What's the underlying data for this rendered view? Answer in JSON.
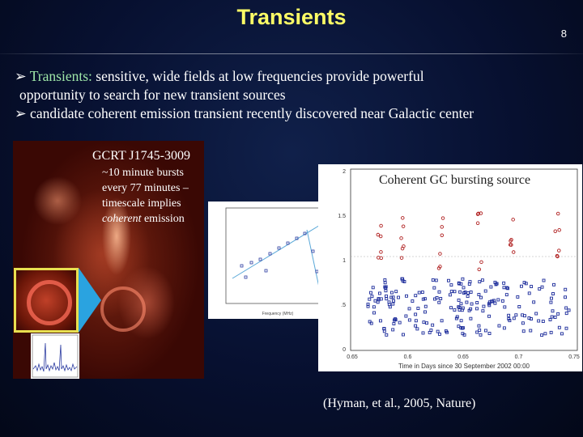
{
  "slide": {
    "title": "Transients",
    "page_number": "8"
  },
  "bullets": {
    "b1_term": "Transients:",
    "b1_rest": " sensitive, wide fields at low frequencies provide powerful",
    "b1_line2": "opportunity to search for new transient sources",
    "b2": "candidate coherent emission transient recently discovered near Galactic center",
    "bullet_glyph": "➢"
  },
  "radio_image": {
    "source_name": "GCRT J1745-3009",
    "caption_line1": "~10 minute bursts",
    "caption_line2": "every 77 minutes –",
    "caption_line3": "timescale implies",
    "caption_italic": "coherent",
    "caption_end": " emission"
  },
  "big_plot": {
    "title": "Coherent GC bursting source",
    "xlabel": "Time in Days since 30 September 2002 00:00",
    "x_ticks": [
      "0.65",
      "0.6",
      "0.65",
      "0.7",
      "0.75"
    ],
    "y_ticks": [
      "2",
      "1.5",
      "1",
      ".5",
      "0"
    ]
  },
  "citation": "(Hyman, et al., 2005, Nature)",
  "colors": {
    "title": "#ffff66",
    "highlight": "#9ee6a8",
    "arrow": "#2aa3e0",
    "frame": "#e8e050"
  }
}
